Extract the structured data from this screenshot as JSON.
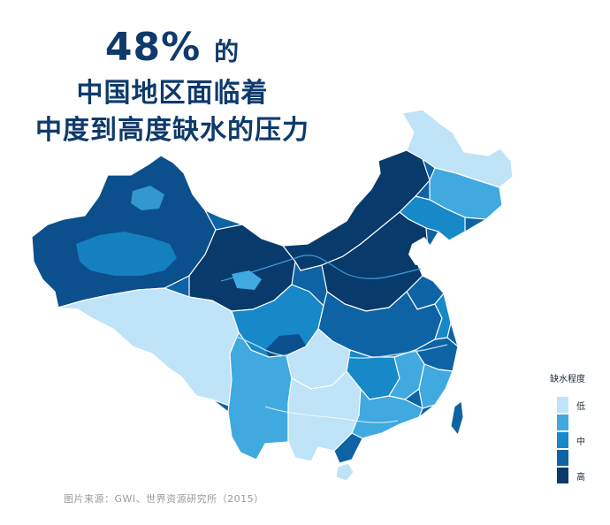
{
  "headline": {
    "percent": "48%",
    "percent_suffix": "的",
    "line2": "中国地区面临着",
    "line3": "中度到高度缺水的压力"
  },
  "legend": {
    "title": "缺水程度",
    "levels": [
      {
        "label": "低",
        "color": "#bfe3f7"
      },
      {
        "label": "",
        "color": "#3fa9e0"
      },
      {
        "label": "中",
        "color": "#1788c8"
      },
      {
        "label": "",
        "color": "#0d63a3"
      },
      {
        "label": "高",
        "color": "#083a6b"
      }
    ]
  },
  "source": "图片来源：GWI、世界资源研究所（2015）",
  "colors": {
    "headline": "#0f3a6b",
    "border": "#ffffff",
    "background": "#ffffff"
  }
}
